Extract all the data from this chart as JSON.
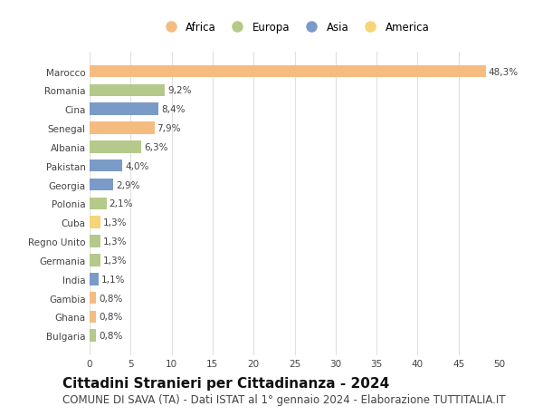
{
  "categories": [
    "Marocco",
    "Romania",
    "Cina",
    "Senegal",
    "Albania",
    "Pakistan",
    "Georgia",
    "Polonia",
    "Cuba",
    "Regno Unito",
    "Germania",
    "India",
    "Gambia",
    "Ghana",
    "Bulgaria"
  ],
  "values": [
    48.3,
    9.2,
    8.4,
    7.9,
    6.3,
    4.0,
    2.9,
    2.1,
    1.3,
    1.3,
    1.3,
    1.1,
    0.8,
    0.8,
    0.8
  ],
  "labels": [
    "48,3%",
    "9,2%",
    "8,4%",
    "7,9%",
    "6,3%",
    "4,0%",
    "2,9%",
    "2,1%",
    "1,3%",
    "1,3%",
    "1,3%",
    "1,1%",
    "0,8%",
    "0,8%",
    "0,8%"
  ],
  "continent": [
    "Africa",
    "Europa",
    "Asia",
    "Africa",
    "Europa",
    "Asia",
    "Asia",
    "Europa",
    "America",
    "Europa",
    "Europa",
    "Asia",
    "Africa",
    "Africa",
    "Europa"
  ],
  "colors": {
    "Africa": "#F5BC82",
    "Europa": "#B5C98A",
    "Asia": "#7A9BC8",
    "America": "#F5D575"
  },
  "legend_order": [
    "Africa",
    "Europa",
    "Asia",
    "America"
  ],
  "title": "Cittadini Stranieri per Cittadinanza - 2024",
  "subtitle": "COMUNE DI SAVA (TA) - Dati ISTAT al 1° gennaio 2024 - Elaborazione TUTTITALIA.IT",
  "xlim": [
    0,
    50
  ],
  "xticks": [
    0,
    5,
    10,
    15,
    20,
    25,
    30,
    35,
    40,
    45,
    50
  ],
  "background_color": "#ffffff",
  "grid_color": "#e0e0e0",
  "bar_height": 0.65,
  "title_fontsize": 11,
  "subtitle_fontsize": 8.5,
  "label_fontsize": 7.5,
  "tick_fontsize": 7.5,
  "legend_fontsize": 8.5
}
